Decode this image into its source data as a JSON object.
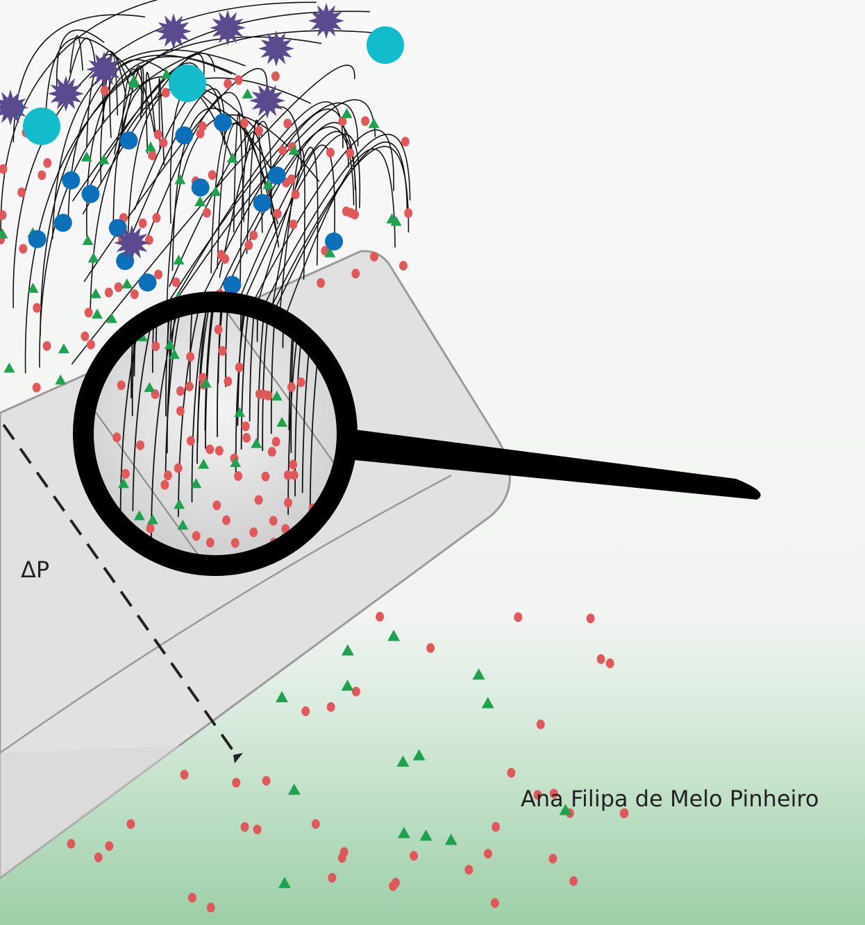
{
  "labels": {
    "pressure": "ΔP",
    "author": "Ana Filipa de Melo Pinheiro"
  }
}
